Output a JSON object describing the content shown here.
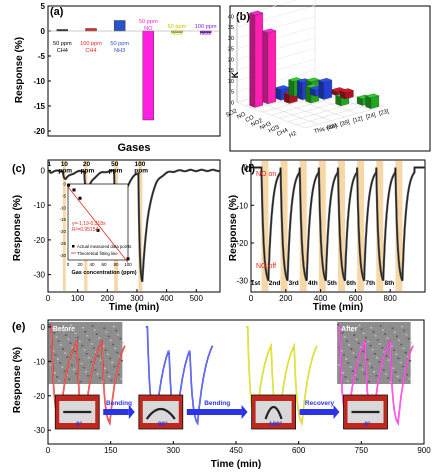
{
  "panels": {
    "a": {
      "label": "(a)"
    },
    "b": {
      "label": "(b)"
    },
    "c": {
      "label": "(c)"
    },
    "d": {
      "label": "(d)"
    },
    "e": {
      "label": "(e)"
    }
  },
  "chart_data": [
    {
      "id": "a",
      "type": "bar",
      "xlabel": "Gases",
      "ylabel": "Response (%)",
      "ylim": [
        -21,
        5
      ],
      "yticks": [
        5,
        0,
        -5,
        -10,
        -15,
        -20
      ],
      "categories": [
        {
          "line1": "50 ppm",
          "line2": "CH4",
          "color": "#1a1a1a",
          "value": 0.3
        },
        {
          "line1": "100 ppm",
          "line2": "CH4",
          "color": "#e8271f",
          "value": 0.5
        },
        {
          "line1": "50 ppm",
          "line2": "NH3",
          "color": "#2a53c8",
          "value": 2.1
        },
        {
          "line1": "50 ppm",
          "line2": "NO",
          "color": "#ff1fe0",
          "value": -17.8
        },
        {
          "line1": "50 ppm",
          "line2": "NO2",
          "color": "#c8c800",
          "value": -0.3
        },
        {
          "line1": "100 ppm",
          "line2": "NO2",
          "color": "#8a1ac8",
          "value": -0.4
        }
      ]
    },
    {
      "id": "b",
      "type": "bar",
      "zlabel": "K",
      "zticks": [
        0,
        5,
        10,
        15,
        20,
        25,
        30,
        35,
        40
      ],
      "x_categories": [
        "H2",
        "CH4",
        "H2S",
        "NH3",
        "NO2",
        "CO",
        "NO",
        "SO2"
      ],
      "y_categories": [
        "This work",
        "[38]",
        "[39]",
        "[12]",
        "[24]",
        "[23]"
      ],
      "bars": [
        {
          "x": "NO",
          "y": "This work",
          "value": 43,
          "color": "#ff1fb0"
        },
        {
          "x": "NO",
          "y": "[38]",
          "value": 33,
          "color": "#ff1fb0"
        },
        {
          "x": "H2",
          "y": "[23]",
          "value": 5,
          "color": "#1fa81f"
        },
        {
          "x": "CH4",
          "y": "[23]",
          "value": 3,
          "color": "#1fa81f"
        },
        {
          "x": "H2S",
          "y": "[24]",
          "value": 4,
          "color": "#1fa81f"
        },
        {
          "x": "NH3",
          "y": "[23]",
          "value": 3,
          "color": "#b0101f"
        },
        {
          "x": "NO2",
          "y": "[24]",
          "value": 8,
          "color": "#2040d8"
        },
        {
          "x": "CO",
          "y": "[12]",
          "value": 8,
          "color": "#2040d8"
        },
        {
          "x": "NO2",
          "y": "[12]",
          "value": 7,
          "color": "#1fa81f"
        },
        {
          "x": "CO",
          "y": "[39]",
          "value": 4,
          "color": "#b0101f"
        },
        {
          "x": "SO2",
          "y": "[24]",
          "value": 3,
          "color": "#b0101f"
        },
        {
          "x": "NO",
          "y": "[12]",
          "value": 7,
          "color": "#1fa81f"
        },
        {
          "x": "NO",
          "y": "[39]",
          "value": 5,
          "color": "#2040d8"
        },
        {
          "x": "SO2",
          "y": "[23]",
          "value": 2,
          "color": "#1fa81f"
        },
        {
          "x": "CO",
          "y": "[24]",
          "value": 3,
          "color": "#2040d8"
        },
        {
          "x": "NO2",
          "y": "[23]",
          "value": 2,
          "color": "#b0101f"
        }
      ]
    },
    {
      "id": "c",
      "type": "line",
      "xlabel": "Time (min)",
      "ylabel": "Response (%)",
      "xlim": [
        0,
        580
      ],
      "ylim": [
        -35,
        3
      ],
      "xticks": [
        0,
        100,
        200,
        300,
        400,
        500
      ],
      "yticks": [
        0,
        -10,
        -20,
        -30
      ],
      "annotations": [
        {
          "text": "1",
          "t": 5,
          "y": 1.3
        },
        {
          "text": "10",
          "t": 55,
          "y": 1.3
        },
        {
          "text": "ppm",
          "t": 58,
          "y": -0.6
        },
        {
          "text": "20",
          "t": 130,
          "y": 1.3
        },
        {
          "text": "ppm",
          "t": 133,
          "y": -0.6
        },
        {
          "text": "50",
          "t": 225,
          "y": 1.3
        },
        {
          "text": "ppm",
          "t": 228,
          "y": -0.6
        },
        {
          "text": "100",
          "t": 310,
          "y": 1.3
        },
        {
          "text": "ppm",
          "t": 314,
          "y": -0.6
        }
      ],
      "bands": [
        [
          50,
          60
        ],
        [
          122,
          133
        ],
        [
          223,
          236
        ],
        [
          305,
          318
        ]
      ],
      "pulses": [
        {
          "t0": 5,
          "t1": 10,
          "depth": 0.5
        },
        {
          "t0": 50,
          "t1": 60,
          "depth": 2.5
        },
        {
          "t0": 122,
          "t1": 133,
          "depth": 6.0
        },
        {
          "t0": 223,
          "t1": 236,
          "depth": 19.5
        },
        {
          "t0": 305,
          "t1": 318,
          "depth": 31.5
        }
      ],
      "inset": {
        "xlabel": "Gas concentration (ppm)",
        "xlim": [
          0,
          100
        ],
        "ylim": [
          -32,
          0
        ],
        "xticks": [
          0,
          20,
          40,
          60,
          80,
          100
        ],
        "yticks": [
          0,
          -5,
          -10,
          -15,
          -20,
          -25,
          -30
        ],
        "points": [
          [
            1,
            -0.5
          ],
          [
            10,
            -2.5
          ],
          [
            20,
            -6
          ],
          [
            50,
            -19.5
          ],
          [
            100,
            -31.5
          ]
        ],
        "fit": {
          "slope": -0.318,
          "intercept": -1.19
        },
        "equation": "y=-1.19-0.318x",
        "r2": "R²=0.95154",
        "legend": [
          "Actual measured data points",
          "Theoretical fitting line"
        ]
      }
    },
    {
      "id": "d",
      "type": "line",
      "xlabel": "Time (min)",
      "ylabel": "Response (%)",
      "xlim": [
        0,
        1000
      ],
      "ylim": [
        -33,
        2
      ],
      "xticks": [
        0,
        200,
        400,
        600,
        800
      ],
      "yticks": [
        0,
        -10,
        -20,
        -30
      ],
      "pulse_starts": [
        60,
        170,
        280,
        390,
        500,
        610,
        720,
        830
      ],
      "pulse_width": 40,
      "depth": 30,
      "cycle_labels": [
        "1st",
        "2nd",
        "3rd",
        "4th",
        "5th",
        "6th",
        "7th",
        "8th"
      ],
      "labels": {
        "on": "NO on",
        "off": "NO off"
      }
    },
    {
      "id": "e",
      "type": "line",
      "xlabel": "Time (min)",
      "ylabel": "Response (%)",
      "xlim": [
        0,
        900
      ],
      "ylim": [
        -34,
        2
      ],
      "xticks": [
        0,
        150,
        300,
        450,
        600,
        750,
        900
      ],
      "yticks": [
        0,
        -10,
        -20,
        -30
      ],
      "segments": [
        {
          "color": "#e8271f",
          "starts": [
            8,
            68,
            128
          ],
          "photo": "Before"
        },
        {
          "color": "#2a33e8",
          "starts": [
            238,
            288,
            338
          ],
          "photo": ""
        },
        {
          "color": "#d6d600",
          "starts": [
            478,
            533,
            588
          ],
          "photo": ""
        },
        {
          "color": "#ff1fe0",
          "starts": [
            698,
            758,
            818
          ],
          "photo": "After"
        }
      ],
      "pulse_width": 20,
      "depth": 28,
      "steps": [
        {
          "angle": "0°",
          "arrow": "Bending"
        },
        {
          "angle": "90°",
          "arrow": "Bending"
        },
        {
          "angle": "180°",
          "arrow": "Recovery"
        },
        {
          "angle": "0°",
          "arrow": ""
        }
      ]
    }
  ]
}
